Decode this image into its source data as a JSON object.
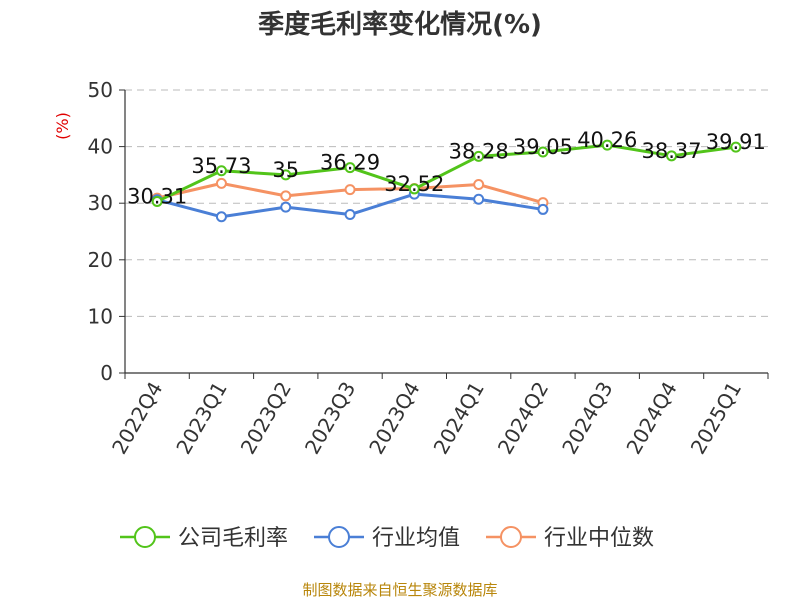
{
  "chart_data": {
    "type": "line",
    "title": "季度毛利率变化情况(%)",
    "ylabel": "(%)",
    "xlabel": "",
    "categories": [
      "2022Q4",
      "2023Q1",
      "2023Q2",
      "2023Q3",
      "2023Q4",
      "2024Q1",
      "2024Q2",
      "2024Q3",
      "2024Q4",
      "2025Q1"
    ],
    "ylim": [
      0,
      50
    ],
    "yticks": [
      0,
      10,
      20,
      30,
      40,
      50
    ],
    "grid": true,
    "legend": "bottom",
    "series": [
      {
        "name": "公司毛利率",
        "color": "#52c41a",
        "values": [
          30.31,
          35.73,
          35,
          36.29,
          32.52,
          38.28,
          39.05,
          40.26,
          38.37,
          39.91
        ],
        "labels": [
          "30.31",
          "35.73",
          "35",
          "36.29",
          "32.52",
          "38.28",
          "39.05",
          "40.26",
          "38.37",
          "39.91"
        ]
      },
      {
        "name": "行业均值",
        "color": "#4a7fd6",
        "values": [
          30.6,
          27.6,
          29.3,
          28.0,
          31.6,
          30.7,
          28.9,
          null,
          null,
          null
        ]
      },
      {
        "name": "行业中位数",
        "color": "#f59263",
        "values": [
          30.9,
          33.5,
          31.3,
          32.4,
          32.6,
          33.3,
          30.1,
          null,
          null,
          null
        ]
      }
    ]
  },
  "source": "制图数据来自恒生聚源数据库"
}
